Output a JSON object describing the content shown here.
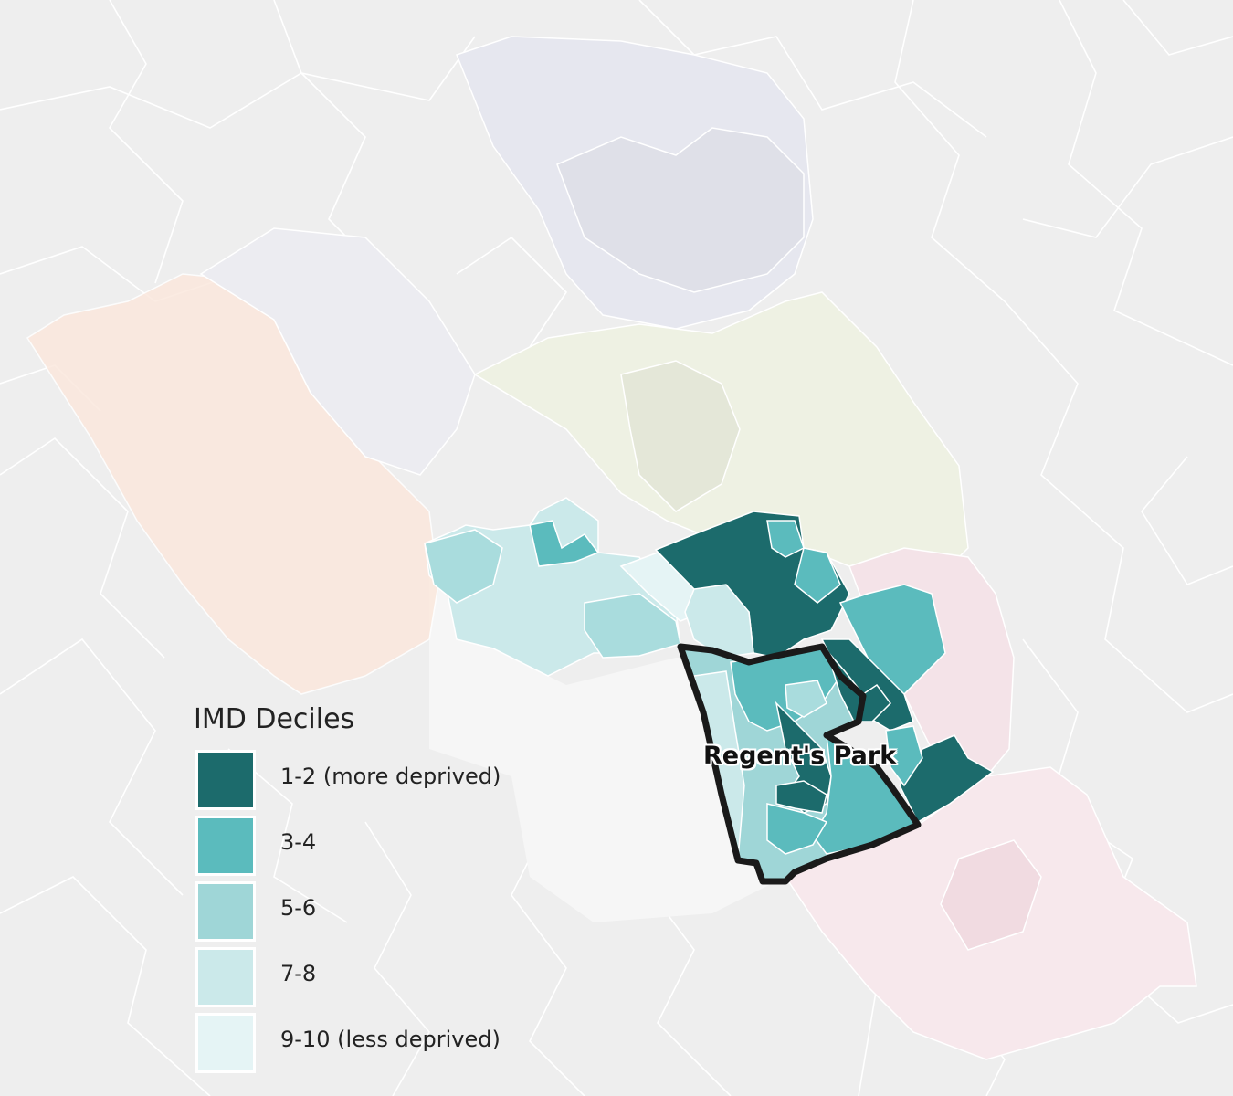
{
  "map": {
    "region_label": "Regent's Park"
  },
  "legend": {
    "title": "IMD Deciles",
    "items": [
      {
        "label": "1-2 (more deprived)",
        "color": "#1c6b6c"
      },
      {
        "label": "3-4",
        "color": "#5bbbbd"
      },
      {
        "label": "5-6",
        "color": "#9fd6d7"
      },
      {
        "label": "7-8",
        "color": "#cbe9ea"
      },
      {
        "label": "9-10 (less deprived)",
        "color": "#e5f4f5"
      }
    ]
  },
  "colors": {
    "background": "#efefef",
    "boundary_lines": "#ffffff",
    "highlight_outline": "#1a1a1a",
    "faded_northwest": "#fbe6dc",
    "faded_north": "#e5e6ee",
    "faded_northeast": "#edf0e1",
    "faded_east": "#f6e1e6"
  }
}
